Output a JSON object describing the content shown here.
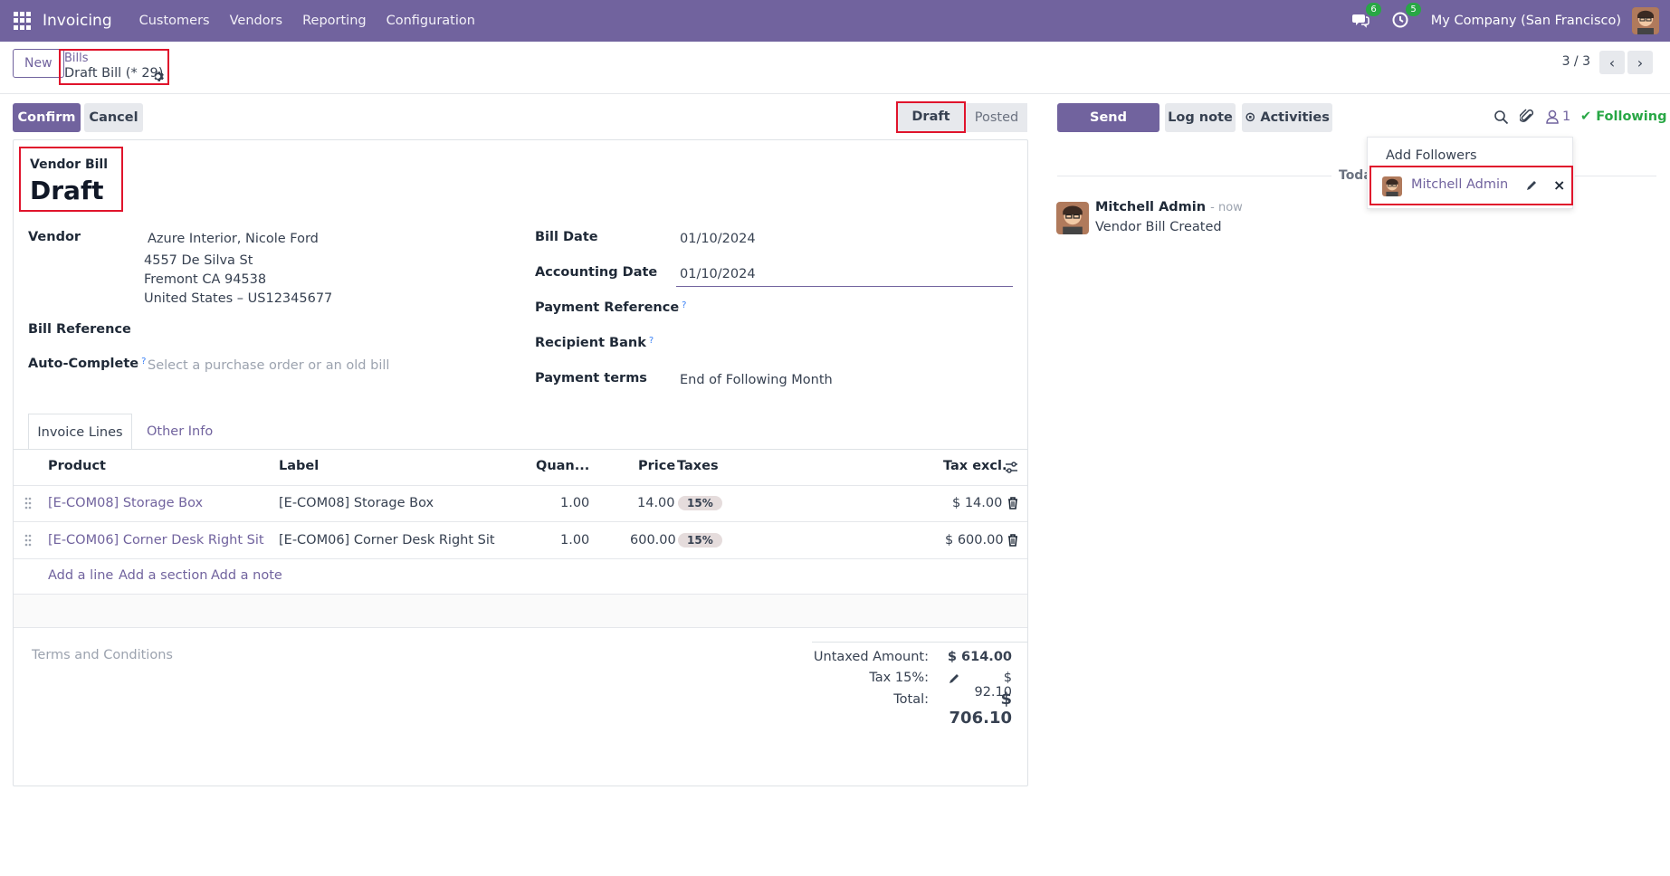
{
  "nav": {
    "app_title": "Invoicing",
    "items": [
      "Customers",
      "Vendors",
      "Reporting",
      "Configuration"
    ],
    "chat_count": "6",
    "activity_count": "5",
    "company": "My Company (San Francisco)"
  },
  "control": {
    "new_label": "New",
    "breadcrumb_parent": "Bills",
    "breadcrumb_current": "Draft Bill (* 29)",
    "pager": "3 / 3"
  },
  "actions": {
    "confirm": "Confirm",
    "cancel": "Cancel"
  },
  "status": {
    "stages": [
      "Draft",
      "Posted"
    ],
    "current": "Draft"
  },
  "form": {
    "type_label": "Vendor Bill",
    "title": "Draft",
    "vendor_label": "Vendor",
    "vendor_name": "Azure Interior, Nicole Ford",
    "vendor_address": [
      "4557 De Silva St",
      "Fremont CA 94538",
      "United States – US12345677"
    ],
    "bill_reference_label": "Bill Reference",
    "auto_complete_label": "Auto-Complete",
    "auto_complete_placeholder": "Select a purchase order or an old bill",
    "bill_date_label": "Bill Date",
    "bill_date": "01/10/2024",
    "accounting_date_label": "Accounting Date",
    "accounting_date": "01/10/2024",
    "payment_reference_label": "Payment Reference",
    "recipient_bank_label": "Recipient Bank",
    "payment_terms_label": "Payment terms",
    "payment_terms": "End of Following Month",
    "help_mark": "?"
  },
  "tabs": [
    "Invoice Lines",
    "Other Info"
  ],
  "lines": {
    "headers": [
      "Product",
      "Label",
      "Quan...",
      "Price",
      "Taxes",
      "Tax excl."
    ],
    "rows": [
      {
        "product": "[E-COM08] Storage Box",
        "label": "[E-COM08] Storage Box",
        "quantity": "1.00",
        "price": "14.00",
        "tax": "15%",
        "subtotal": "$ 14.00"
      },
      {
        "product": "[E-COM06] Corner Desk Right Sit",
        "label": "[E-COM06] Corner Desk Right Sit",
        "quantity": "1.00",
        "price": "600.00",
        "tax": "15%",
        "subtotal": "$ 600.00"
      }
    ],
    "add_line": "Add a line",
    "add_section": "Add a section",
    "add_note": "Add a note"
  },
  "footer": {
    "terms_placeholder": "Terms and Conditions",
    "untaxed_label": "Untaxed Amount:",
    "untaxed_value": "$ 614.00",
    "tax_label": "Tax 15%:",
    "tax_value": "$ 92.10",
    "total_label": "Total:",
    "total_value": "$ 706.10"
  },
  "chatter": {
    "send_message": "Send message",
    "log_note": "Log note",
    "activities": "Activities",
    "follower_count": "1",
    "following": "Following",
    "today": "Toda",
    "message": {
      "author": "Mitchell Admin",
      "time": "- now",
      "body": "Vendor Bill Created"
    }
  },
  "followers_dropdown": {
    "add_followers": "Add Followers",
    "follower_name": "Mitchell Admin"
  },
  "colors": {
    "brand": "#71639e",
    "highlight": "#e0142c",
    "following": "#28a745"
  }
}
